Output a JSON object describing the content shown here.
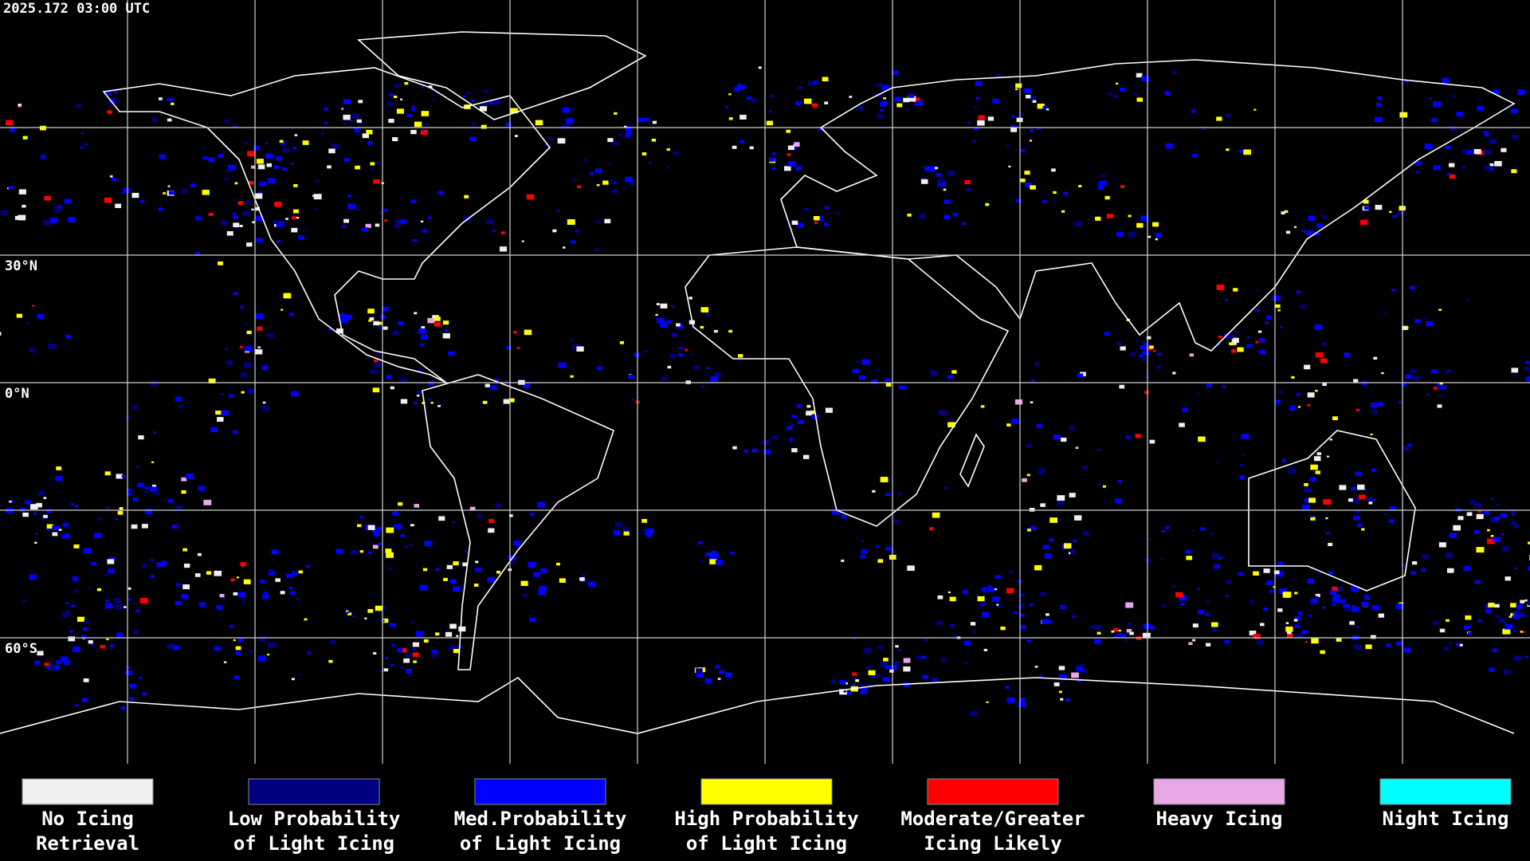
{
  "timestamp": "2025.172 03:00 UTC",
  "latitude_labels": [
    "30°N",
    "0°N",
    "60°S"
  ],
  "legend": [
    {
      "label_lines": [
        "No Icing",
        "Retrieval"
      ],
      "color": "#f0f0f0"
    },
    {
      "label_lines": [
        "Low Probability",
        "of Light Icing"
      ],
      "color": "#000080"
    },
    {
      "label_lines": [
        "Med.Probability",
        "of Light Icing"
      ],
      "color": "#0000ff"
    },
    {
      "label_lines": [
        "High Probability",
        "of Light Icing"
      ],
      "color": "#ffff00"
    },
    {
      "label_lines": [
        "Moderate/Greater",
        "Icing Likely"
      ],
      "color": "#ff0000"
    },
    {
      "label_lines": [
        "Heavy Icing"
      ],
      "color": "#e8a8e8"
    },
    {
      "label_lines": [
        "Night Icing"
      ],
      "color": "#00ffff"
    }
  ]
}
